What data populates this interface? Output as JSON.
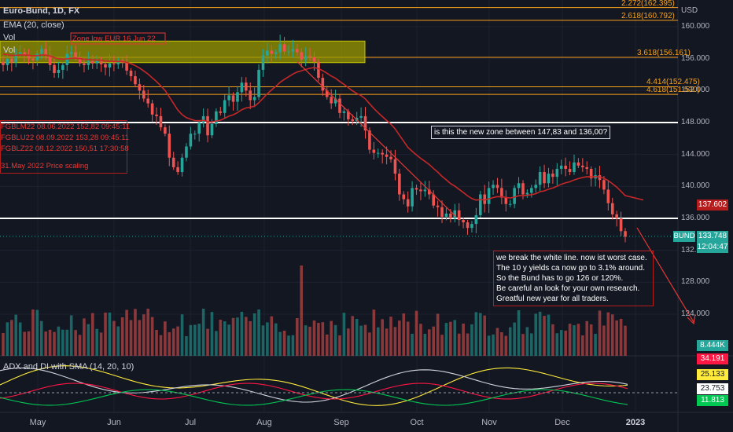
{
  "header": {
    "title": "Euro-Bund, 1D, FX",
    "indicator": "EMA (20, close)",
    "vol_label": "Vol",
    "vol_label2": "Vol",
    "currency": "USD"
  },
  "price_axis": {
    "labels": [
      "160.000",
      "156.000",
      "152.000",
      "148.000",
      "144.000",
      "140.000",
      "136.000",
      "132.000",
      "128.000",
      "124.000"
    ],
    "values": [
      160,
      156,
      152,
      148,
      144,
      140,
      136,
      132,
      128,
      124
    ]
  },
  "time_axis": [
    "May",
    "Jun",
    "Jul",
    "Aug",
    "Sep",
    "Oct",
    "Nov",
    "Dec",
    "2023"
  ],
  "fib_levels": [
    {
      "label": "2.272(162.395)",
      "value": 162.4
    },
    {
      "label": "2.618(160.792)",
      "value": 160.8
    },
    {
      "label": "3.618(156.161)",
      "value": 156.16
    },
    {
      "label": "4.414(152.475)",
      "value": 152.48
    },
    {
      "label": "4.618(151.530)",
      "value": 151.53
    }
  ],
  "white_lines": [
    148.0,
    136.0
  ],
  "zone": {
    "top": 158.2,
    "bottom": 155.5,
    "label": "Zone low EUR 16 Jun 22"
  },
  "tags": {
    "ema": {
      "text": "137.602",
      "color": "#b71c1c"
    },
    "symbol": {
      "text": "BUND",
      "color": "#26a69a"
    },
    "price": {
      "text": "133.748",
      "color": "#26a69a"
    },
    "countdown": {
      "text": "12:04:47",
      "color": "#26a69a"
    },
    "volume": {
      "text": "8.444K",
      "color": "#26a69a"
    },
    "adx1": {
      "text": "34.191",
      "color": "#ff1744"
    },
    "adx2": {
      "text": "25.133",
      "color": "#ffeb3b"
    },
    "adx3": {
      "text": "23.753",
      "color": "#ffffff"
    },
    "adx4": {
      "text": "11.813",
      "color": "#00c853"
    }
  },
  "contracts": [
    "FGBLM22 08.06.2022 152,82 09:45:11",
    "FGBLU22 08.09.2022 153,28 09:45:11",
    "FGBLZ22 08.12.2022 150,51 17:30:58"
  ],
  "scaling_note": "31.May 2022 Price scaling",
  "zone_question": "is this the new zone between 147,83 and 136,00?",
  "analysis_lines": [
    "we break the white line. now ist worst case.",
    "The 10 y yields ca now go to 3.1% around.",
    "So the Bund has to go 126 or 120%.",
    "Be careful an look for your own research.",
    "Greatful new year for all traders."
  ],
  "adx_label": "ADX and DI with SMA (14, 20, 10)",
  "chart_data": {
    "type": "candlestick",
    "symbol": "Euro-Bund",
    "interval": "1D",
    "closes": [
      155.2,
      156.0,
      155.5,
      156.6,
      156.8,
      156.4,
      156.0,
      155.8,
      156.6,
      157.2,
      156.4,
      155.2,
      154.2,
      154.6,
      155.2,
      156.6,
      156.8,
      156.2,
      155.4,
      155.2,
      155.7,
      155.4,
      155.7,
      155.3,
      154.9,
      155.4,
      155.3,
      155.8,
      155.5,
      154.5,
      153.8,
      152.8,
      152.0,
      151.0,
      150.4,
      149.0,
      148.8,
      147.4,
      146.6,
      143.6,
      142.4,
      141.8,
      143.6,
      145.0,
      146.6,
      146.6,
      148.0,
      148.8,
      146.4,
      147.8,
      149.4,
      149.2,
      150.8,
      151.4,
      150.6,
      151.8,
      153.0,
      152.0,
      150.8,
      151.2,
      154.6,
      156.4,
      157.0,
      156.6,
      156.8,
      157.8,
      156.9,
      156.9,
      157.2,
      156.8,
      155.9,
      156.3,
      156.2,
      155.6,
      153.6,
      152.0,
      151.2,
      150.4,
      151.0,
      149.2,
      149.4,
      148.4,
      148.2,
      148.6,
      148.8,
      147.0,
      144.6,
      144.2,
      144.2,
      144.0,
      143.7,
      143.4,
      141.6,
      139.0,
      138.4,
      137.5,
      139.8,
      139.6,
      139.4,
      139.6,
      139.0,
      137.6,
      137.4,
      136.2,
      136.6,
      136.0,
      137.0,
      135.8,
      135.5,
      134.8,
      135.3,
      136.4,
      139.0,
      137.8,
      139.8,
      140.2,
      139.8,
      138.6,
      137.8,
      137.8,
      139.8,
      140.4,
      139.0,
      139.2,
      139.8,
      140.2,
      141.8,
      140.4,
      141.6,
      141.2,
      142.2,
      142.6,
      142.2,
      141.8,
      143.0,
      142.6,
      142.4,
      142.2,
      141.0,
      141.4,
      140.8,
      139.6,
      137.9,
      136.5,
      136.0,
      134.4,
      133.7
    ],
    "price_range": [
      122.5,
      163.0
    ],
    "volume_max": 12000,
    "adx_series": [
      "ADX",
      "DI+",
      "DI-",
      "SMA"
    ]
  }
}
